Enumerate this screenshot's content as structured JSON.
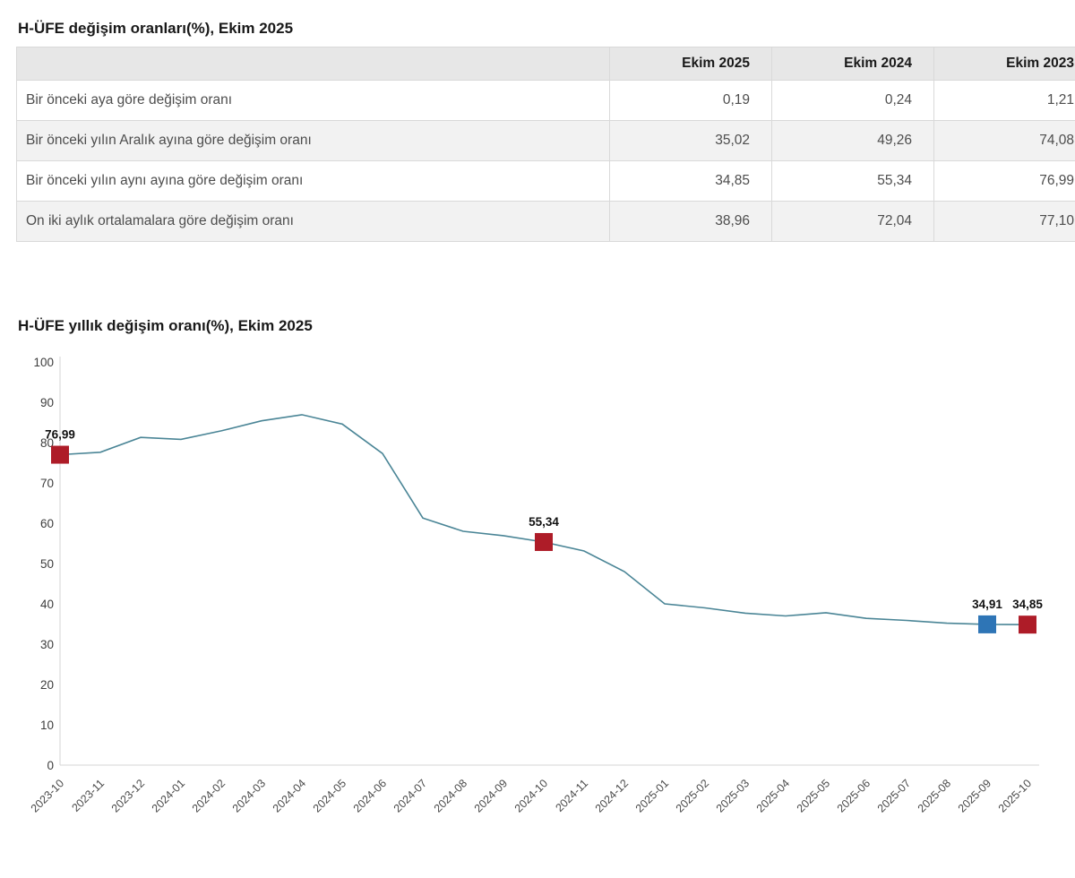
{
  "table_section": {
    "title": "H-ÜFE değişim oranları(%), Ekim 2025",
    "columns": [
      "",
      "Ekim 2025",
      "Ekim 2024",
      "Ekim 2023"
    ],
    "rows": [
      {
        "label": "Bir önceki aya göre değişim oranı",
        "values": [
          "0,19",
          "0,24",
          "1,21"
        ]
      },
      {
        "label": "Bir önceki yılın Aralık ayına göre değişim oranı",
        "values": [
          "35,02",
          "49,26",
          "74,08"
        ]
      },
      {
        "label": "Bir önceki yılın aynı ayına göre değişim oranı",
        "values": [
          "34,85",
          "55,34",
          "76,99"
        ]
      },
      {
        "label": "On iki aylık ortalamalara göre değişim oranı",
        "values": [
          "38,96",
          "72,04",
          "77,10"
        ]
      }
    ]
  },
  "chart_section": {
    "title": "H-ÜFE yıllık değişim oranı(%), Ekim 2025"
  },
  "chart_data": {
    "type": "line",
    "title": "H-ÜFE yıllık değişim oranı(%), Ekim 2025",
    "xlabel": "",
    "ylabel": "",
    "ylim": [
      0,
      100
    ],
    "yticks": [
      0,
      10,
      20,
      30,
      40,
      50,
      60,
      70,
      80,
      90,
      100
    ],
    "grid": false,
    "legend": "none",
    "line_color": "#4a8596",
    "axis_color": "#d6d6d6",
    "tick_label_color": "#4a4a4a",
    "annotation_text_color": "#111111",
    "x": [
      "2023-10",
      "2023-11",
      "2023-12",
      "2024-01",
      "2024-02",
      "2024-03",
      "2024-04",
      "2024-05",
      "2024-06",
      "2024-07",
      "2024-08",
      "2024-09",
      "2024-10",
      "2024-11",
      "2024-12",
      "2025-01",
      "2025-02",
      "2025-03",
      "2025-04",
      "2025-05",
      "2025-06",
      "2025-07",
      "2025-08",
      "2025-09",
      "2025-10"
    ],
    "values": [
      76.99,
      77.6,
      81.3,
      80.8,
      82.9,
      85.4,
      86.9,
      84.6,
      77.3,
      61.3,
      58.0,
      56.9,
      55.34,
      53.1,
      48.0,
      40.0,
      39.0,
      37.7,
      37.0,
      37.8,
      36.4,
      35.9,
      35.2,
      34.91,
      34.85
    ],
    "annotated_points": [
      {
        "x": "2023-10",
        "value": 76.99,
        "label": "76,99",
        "marker_color": "#ae1c28"
      },
      {
        "x": "2024-10",
        "value": 55.34,
        "label": "55,34",
        "marker_color": "#ae1c28"
      },
      {
        "x": "2025-09",
        "value": 34.91,
        "label": "34,91",
        "marker_color": "#2e75b6"
      },
      {
        "x": "2025-10",
        "value": 34.85,
        "label": "34,85",
        "marker_color": "#ae1c28"
      }
    ]
  }
}
